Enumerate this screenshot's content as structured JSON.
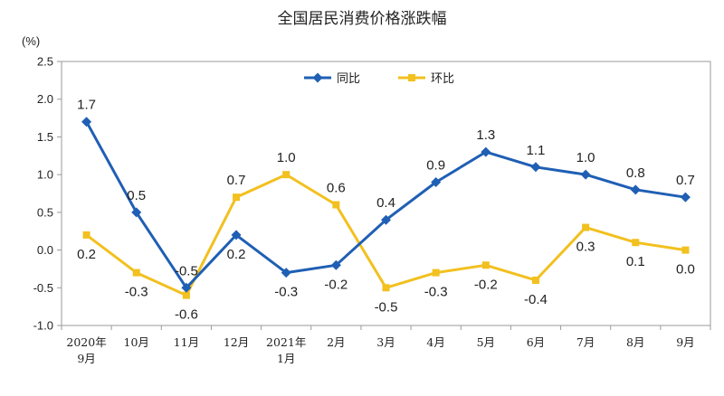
{
  "chart_data": {
    "type": "line",
    "title": "全国居民消费价格涨跌幅",
    "unit_label": "(%)",
    "categories": [
      "2020年\n9月",
      "10月",
      "11月",
      "12月",
      "2021年\n1月",
      "2月",
      "3月",
      "4月",
      "5月",
      "6月",
      "7月",
      "8月",
      "9月"
    ],
    "ylim": [
      -1.0,
      2.5
    ],
    "yticks": [
      "2.5",
      "2.0",
      "1.5",
      "1.0",
      "0.5",
      "0.0",
      "-0.5",
      "-1.0"
    ],
    "ytick_values": [
      2.5,
      2.0,
      1.5,
      1.0,
      0.5,
      0.0,
      -0.5,
      -1.0
    ],
    "grid": false,
    "legend_position": "top",
    "series": [
      {
        "name": "同比",
        "color": "#1f5fb4",
        "marker": "diamond",
        "values": [
          1.7,
          0.5,
          -0.5,
          0.2,
          -0.3,
          -0.2,
          0.4,
          0.9,
          1.3,
          1.1,
          1.0,
          0.8,
          0.7
        ],
        "labels": [
          "1.7",
          "0.5",
          "-0.5",
          "0.2",
          "-0.3",
          "-0.2",
          "0.4",
          "0.9",
          "1.3",
          "1.1",
          "1.0",
          "0.8",
          "0.7"
        ],
        "label_side": [
          "above",
          "above",
          "above",
          "below",
          "below",
          "below",
          "above",
          "above",
          "above",
          "above",
          "above",
          "above",
          "above"
        ]
      },
      {
        "name": "环比",
        "color": "#f2c01f",
        "marker": "square",
        "values": [
          0.2,
          -0.3,
          -0.6,
          0.7,
          1.0,
          0.6,
          -0.5,
          -0.3,
          -0.2,
          -0.4,
          0.3,
          0.1,
          0.0
        ],
        "labels": [
          "0.2",
          "-0.3",
          "-0.6",
          "0.7",
          "1.0",
          "0.6",
          "-0.5",
          "-0.3",
          "-0.2",
          "-0.4",
          "0.3",
          "0.1",
          "0.0"
        ],
        "label_side": [
          "below",
          "below",
          "below",
          "above",
          "above",
          "above",
          "below",
          "below",
          "below",
          "below",
          "below",
          "below",
          "below"
        ]
      }
    ]
  }
}
